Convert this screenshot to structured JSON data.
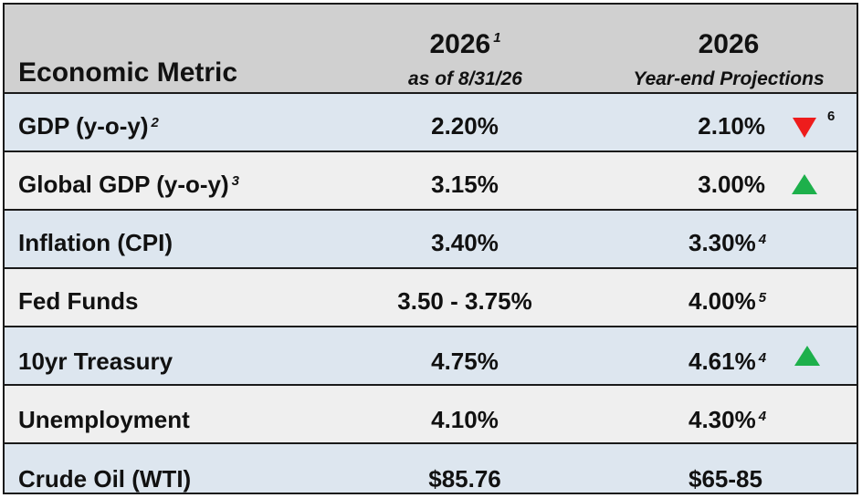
{
  "header": {
    "metric_label": "Economic Metric",
    "col1_title": "2026",
    "col1_note": "1",
    "col1_sub": "as of 8/31/26",
    "col2_title": "2026",
    "col2_sub": "Year-end Projections"
  },
  "rows": [
    {
      "metric": "GDP (y-o-y)",
      "metric_note": "2",
      "current": "2.20%",
      "projection": "2.10%",
      "projection_note": "",
      "trend": "down",
      "trend_note": "6"
    },
    {
      "metric": "Global GDP (y-o-y)",
      "metric_note": "3",
      "current": "3.15%",
      "projection": "3.00%",
      "projection_note": "",
      "trend": "up"
    },
    {
      "metric": "Inflation (CPI)",
      "metric_note": "",
      "current": "3.40%",
      "projection": "3.30%",
      "projection_note": "4"
    },
    {
      "metric": "Fed Funds",
      "metric_note": "",
      "current": "3.50 - 3.75%",
      "projection": "4.00%",
      "projection_note": "5"
    },
    {
      "metric": "10yr Treasury",
      "metric_note": "",
      "current": "4.75%",
      "projection": "4.61%",
      "projection_note": "4",
      "trend": "up"
    },
    {
      "metric": "Unemployment",
      "metric_note": "",
      "current": "4.10%",
      "projection": "4.30%",
      "projection_note": "4"
    },
    {
      "metric": "Crude Oil (WTI)",
      "metric_note": "",
      "current": "$85.76",
      "projection": "$65-85",
      "projection_note": ""
    }
  ],
  "colors": {
    "header_bg": "#d0d0d0",
    "row_blue": "#dde6ef",
    "row_gray": "#efefef",
    "trend_down": "#ee1c1c",
    "trend_up": "#1db04b"
  }
}
